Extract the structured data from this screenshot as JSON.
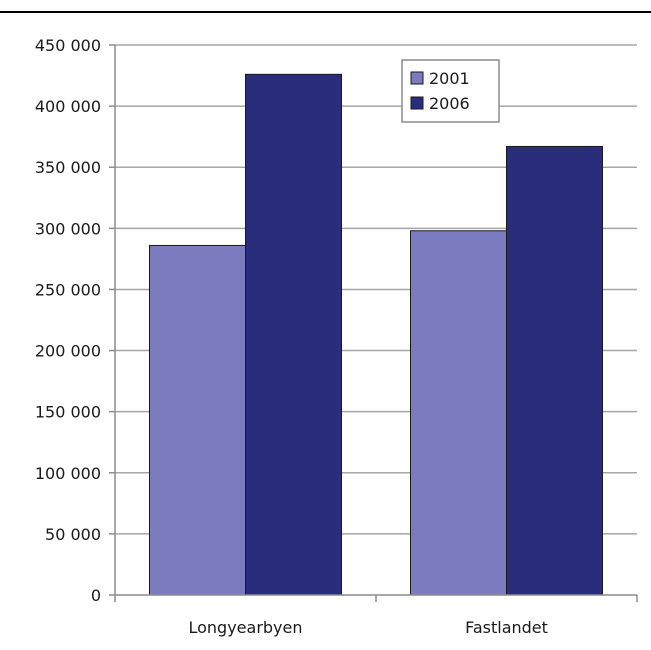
{
  "chart_data": {
    "type": "bar",
    "categories": [
      "Longyearbyen",
      "Fastlandet"
    ],
    "series": [
      {
        "name": "2001",
        "values": [
          286000,
          298000
        ],
        "color": "#7b7bbf"
      },
      {
        "name": "2006",
        "values": [
          426000,
          367000
        ],
        "color": "#2a2c7c"
      }
    ],
    "ylim": [
      0,
      450000
    ],
    "yticks": [
      0,
      50000,
      100000,
      150000,
      200000,
      250000,
      300000,
      350000,
      400000,
      450000
    ],
    "ytick_labels": [
      "0",
      "50 000",
      "100 000",
      "150 000",
      "200 000",
      "250 000",
      "300 000",
      "350 000",
      "400 000",
      "450 000"
    ],
    "grid": true,
    "legend_position": "top-right",
    "title": "",
    "xlabel": "",
    "ylabel": ""
  }
}
